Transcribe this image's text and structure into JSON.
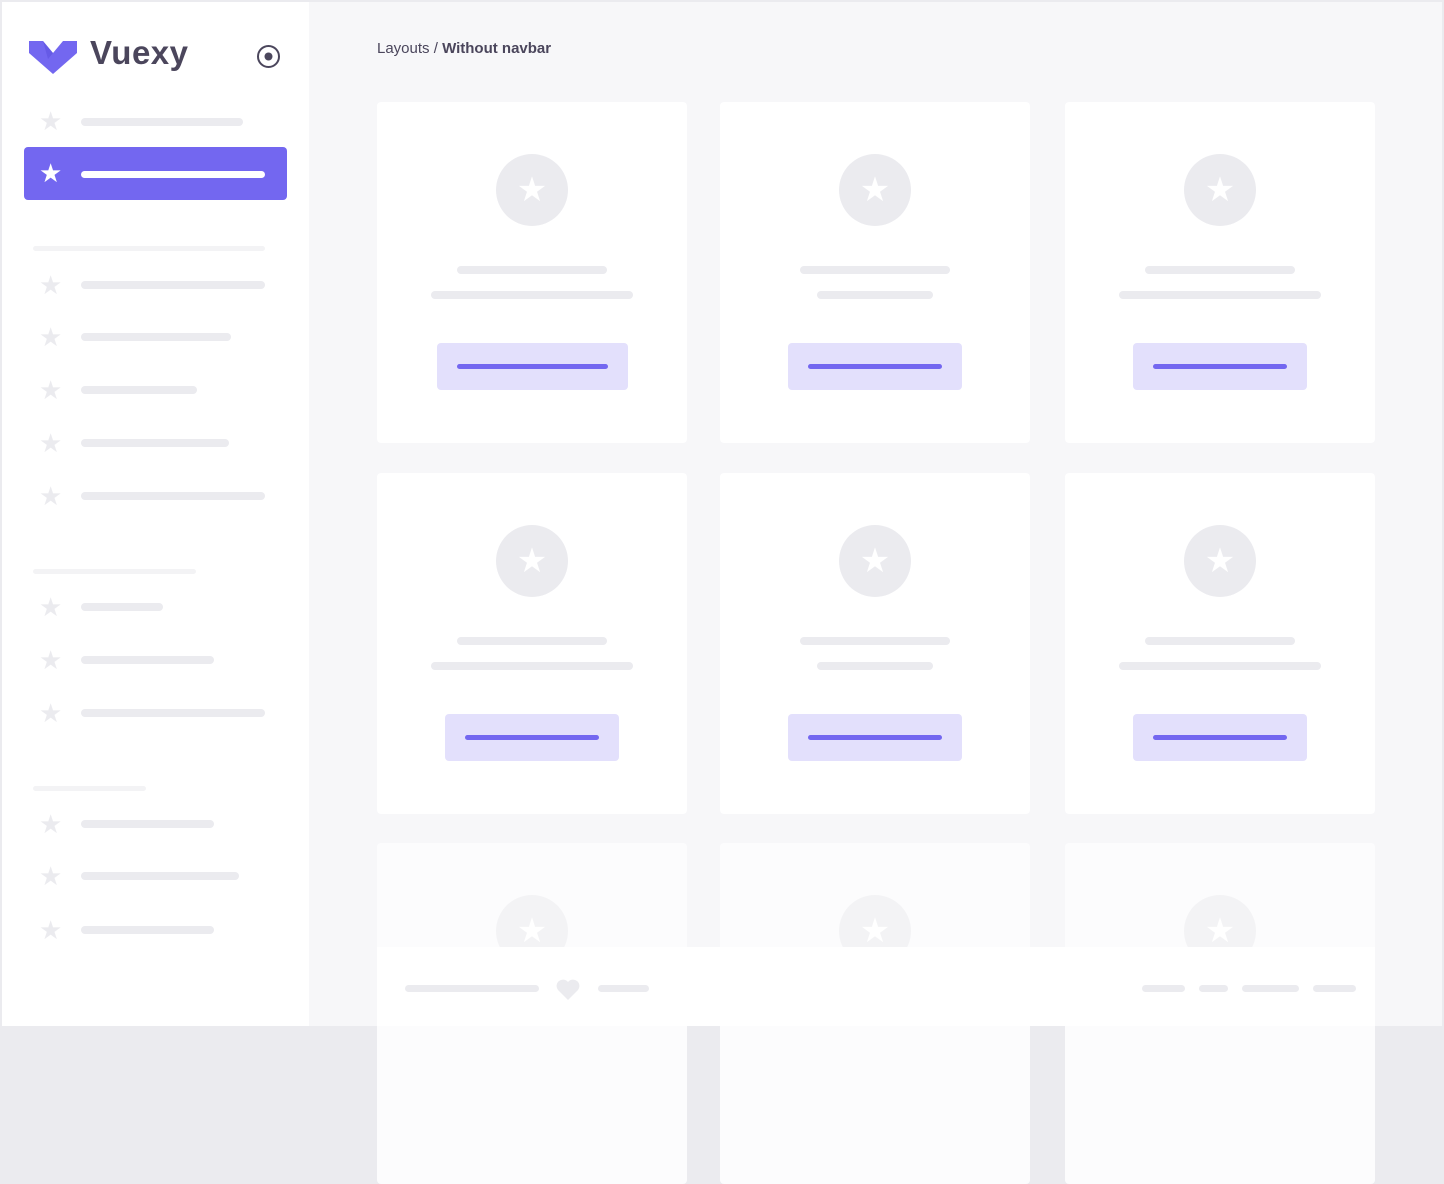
{
  "brand": {
    "name": "Vuexy",
    "logo_color": "#7367f0"
  },
  "breadcrumb": {
    "parent": "Layouts",
    "separator": " / ",
    "current": "Without navbar"
  },
  "colors": {
    "accent": "#7367f0",
    "accent_light": "#e3e0fc",
    "skeleton": "#ebebef",
    "background": "#f7f7f9"
  },
  "icons": {
    "nav": "star-icon",
    "toggle": "radio-circle-icon",
    "footer": "heart-icon"
  }
}
